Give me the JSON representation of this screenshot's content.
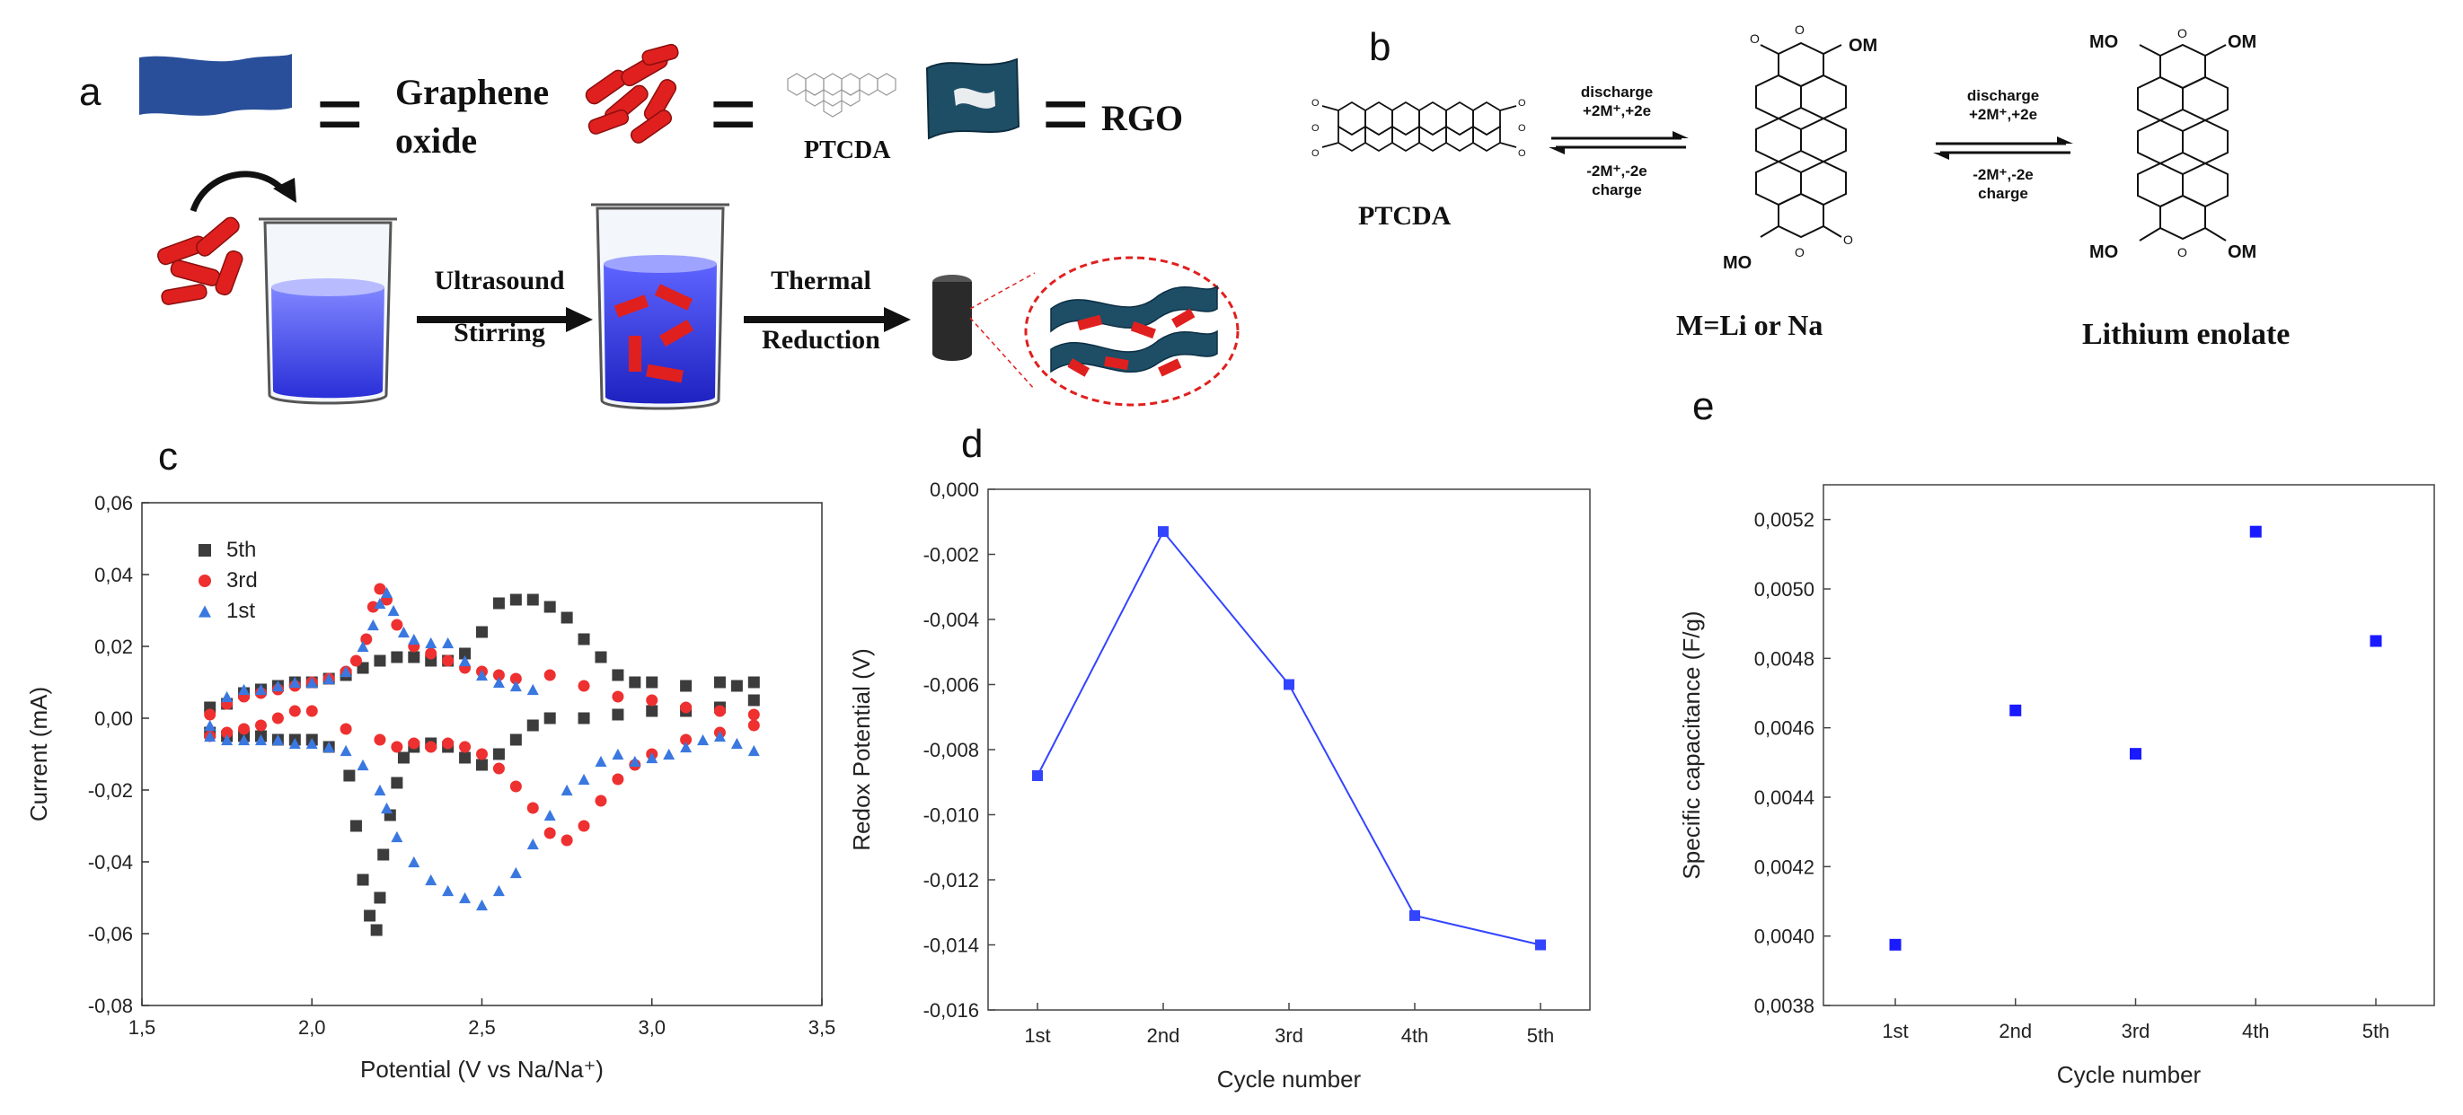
{
  "panels": {
    "a": {
      "letter": "a",
      "legend_go": "Graphene\noxide",
      "legend_go_line1": "Graphene",
      "legend_go_line2": "oxide",
      "ptcda": "PTCDA",
      "rgo": "RGO",
      "eq": "=",
      "step1_line1": "Ultrasound",
      "step1_line2": "Stirring",
      "step2_line1": "Thermal",
      "step2_line2": "Reduction"
    },
    "b": {
      "letter": "b",
      "ptcda": "PTCDA",
      "fwd1_line1": "discharge",
      "fwd1_line2": "+2M⁺,+2e",
      "rev1_line1": "-2M⁺,-2e",
      "rev1_line2": "charge",
      "fwd2_line1": "discharge",
      "fwd2_line2": "+2M⁺,+2e",
      "rev2_line1": "-2M⁺,-2e",
      "rev2_line2": "charge",
      "mid_caption": "M=Li or Na",
      "right_caption": "Lithium enolate",
      "om": "OM",
      "mo": "MO"
    },
    "c": {
      "letter": "c"
    },
    "d": {
      "letter": "d"
    },
    "e": {
      "letter": "e"
    }
  },
  "colors": {
    "red": "#e0201e",
    "navy": "#2a4f9a",
    "teal": "#1e4e66",
    "beaker_blue": "#3b3ff0",
    "series_5th": "#3c3c3c",
    "series_3rd": "#ee3030",
    "series_1st": "#3a78e0",
    "line_d": "#3344ff",
    "marker_e": "#1a1aff"
  },
  "chart_data": [
    {
      "id": "c",
      "type": "scatter",
      "xlabel": "Potential (V vs Na/Na⁺)",
      "ylabel": "Current (mA)",
      "xlim": [
        1.5,
        3.5
      ],
      "ylim": [
        -0.08,
        0.06
      ],
      "xticks": [
        "1,5",
        "2,0",
        "2,5",
        "3,0",
        "3,5"
      ],
      "xtick_values": [
        1.5,
        2.0,
        2.5,
        3.0,
        3.5
      ],
      "yticks": [
        "0,06",
        "0,04",
        "0,02",
        "0,00",
        "-0,02",
        "-0,04",
        "-0,06",
        "-0,08"
      ],
      "ytick_values": [
        0.06,
        0.04,
        0.02,
        0.0,
        -0.02,
        -0.04,
        -0.06,
        -0.08
      ],
      "legend_position": "top-left",
      "series": [
        {
          "name": "5th",
          "marker": "square",
          "points": [
            [
              1.7,
              0.003
            ],
            [
              1.75,
              0.004
            ],
            [
              1.8,
              0.007
            ],
            [
              1.85,
              0.008
            ],
            [
              1.9,
              0.009
            ],
            [
              1.95,
              0.01
            ],
            [
              2.0,
              0.01
            ],
            [
              2.05,
              0.011
            ],
            [
              2.1,
              0.012
            ],
            [
              2.15,
              0.014
            ],
            [
              2.2,
              0.016
            ],
            [
              2.25,
              0.017
            ],
            [
              2.3,
              0.017
            ],
            [
              2.35,
              0.016
            ],
            [
              2.4,
              0.016
            ],
            [
              2.45,
              0.018
            ],
            [
              2.5,
              0.024
            ],
            [
              2.55,
              0.032
            ],
            [
              2.6,
              0.033
            ],
            [
              2.65,
              0.033
            ],
            [
              2.7,
              0.031
            ],
            [
              2.75,
              0.028
            ],
            [
              2.8,
              0.022
            ],
            [
              2.85,
              0.017
            ],
            [
              2.9,
              0.012
            ],
            [
              2.95,
              0.01
            ],
            [
              3.0,
              0.01
            ],
            [
              3.1,
              0.009
            ],
            [
              3.2,
              0.01
            ],
            [
              3.25,
              0.009
            ],
            [
              3.3,
              0.01
            ],
            [
              3.3,
              0.005
            ],
            [
              3.2,
              0.003
            ],
            [
              3.1,
              0.002
            ],
            [
              3.0,
              0.002
            ],
            [
              2.9,
              0.001
            ],
            [
              2.8,
              0.0
            ],
            [
              2.7,
              0.0
            ],
            [
              2.65,
              -0.002
            ],
            [
              2.6,
              -0.006
            ],
            [
              2.55,
              -0.01
            ],
            [
              2.5,
              -0.013
            ],
            [
              2.45,
              -0.011
            ],
            [
              2.4,
              -0.008
            ],
            [
              2.35,
              -0.007
            ],
            [
              2.3,
              -0.008
            ],
            [
              2.27,
              -0.011
            ],
            [
              2.25,
              -0.018
            ],
            [
              2.23,
              -0.027
            ],
            [
              2.21,
              -0.038
            ],
            [
              2.2,
              -0.05
            ],
            [
              2.19,
              -0.059
            ],
            [
              2.17,
              -0.055
            ],
            [
              2.15,
              -0.045
            ],
            [
              2.13,
              -0.03
            ],
            [
              2.11,
              -0.016
            ],
            [
              2.05,
              -0.008
            ],
            [
              2.0,
              -0.006
            ],
            [
              1.95,
              -0.006
            ],
            [
              1.9,
              -0.006
            ],
            [
              1.85,
              -0.005
            ],
            [
              1.8,
              -0.005
            ],
            [
              1.75,
              -0.005
            ],
            [
              1.7,
              -0.004
            ]
          ]
        },
        {
          "name": "3rd",
          "marker": "circle",
          "points": [
            [
              1.7,
              0.001
            ],
            [
              1.75,
              0.004
            ],
            [
              1.8,
              0.006
            ],
            [
              1.85,
              0.007
            ],
            [
              1.9,
              0.008
            ],
            [
              1.95,
              0.009
            ],
            [
              2.0,
              0.01
            ],
            [
              2.05,
              0.011
            ],
            [
              2.1,
              0.013
            ],
            [
              2.13,
              0.016
            ],
            [
              2.16,
              0.022
            ],
            [
              2.18,
              0.031
            ],
            [
              2.2,
              0.036
            ],
            [
              2.22,
              0.033
            ],
            [
              2.25,
              0.026
            ],
            [
              2.3,
              0.02
            ],
            [
              2.35,
              0.018
            ],
            [
              2.4,
              0.016
            ],
            [
              2.45,
              0.014
            ],
            [
              2.5,
              0.013
            ],
            [
              2.55,
              0.012
            ],
            [
              2.6,
              0.011
            ],
            [
              2.7,
              0.012
            ],
            [
              2.8,
              0.009
            ],
            [
              2.9,
              0.006
            ],
            [
              3.0,
              0.005
            ],
            [
              3.1,
              0.003
            ],
            [
              3.2,
              0.002
            ],
            [
              3.3,
              0.001
            ],
            [
              3.3,
              -0.002
            ],
            [
              3.2,
              -0.004
            ],
            [
              3.1,
              -0.006
            ],
            [
              3.0,
              -0.01
            ],
            [
              2.95,
              -0.013
            ],
            [
              2.9,
              -0.017
            ],
            [
              2.85,
              -0.023
            ],
            [
              2.8,
              -0.03
            ],
            [
              2.75,
              -0.034
            ],
            [
              2.7,
              -0.032
            ],
            [
              2.65,
              -0.025
            ],
            [
              2.6,
              -0.019
            ],
            [
              2.55,
              -0.014
            ],
            [
              2.5,
              -0.01
            ],
            [
              2.45,
              -0.008
            ],
            [
              2.4,
              -0.007
            ],
            [
              2.35,
              -0.008
            ],
            [
              2.3,
              -0.007
            ],
            [
              2.25,
              -0.008
            ],
            [
              2.2,
              -0.006
            ],
            [
              2.1,
              -0.003
            ],
            [
              2.0,
              0.002
            ],
            [
              1.95,
              0.002
            ],
            [
              1.9,
              0.0
            ],
            [
              1.85,
              -0.002
            ],
            [
              1.8,
              -0.003
            ],
            [
              1.75,
              -0.004
            ],
            [
              1.7,
              -0.005
            ]
          ]
        },
        {
          "name": "1st",
          "marker": "triangle",
          "points": [
            [
              1.7,
              -0.002
            ],
            [
              1.75,
              0.006
            ],
            [
              1.8,
              0.008
            ],
            [
              1.85,
              0.008
            ],
            [
              1.9,
              0.009
            ],
            [
              1.95,
              0.01
            ],
            [
              2.0,
              0.01
            ],
            [
              2.05,
              0.011
            ],
            [
              2.1,
              0.013
            ],
            [
              2.15,
              0.02
            ],
            [
              2.18,
              0.026
            ],
            [
              2.2,
              0.032
            ],
            [
              2.22,
              0.035
            ],
            [
              2.24,
              0.03
            ],
            [
              2.27,
              0.024
            ],
            [
              2.3,
              0.022
            ],
            [
              2.35,
              0.021
            ],
            [
              2.4,
              0.021
            ],
            [
              2.45,
              0.016
            ],
            [
              2.5,
              0.012
            ],
            [
              2.55,
              0.01
            ],
            [
              2.6,
              0.009
            ],
            [
              2.65,
              0.008
            ],
            [
              3.3,
              -0.009
            ],
            [
              3.25,
              -0.007
            ],
            [
              3.2,
              -0.005
            ],
            [
              3.15,
              -0.006
            ],
            [
              3.1,
              -0.008
            ],
            [
              3.05,
              -0.01
            ],
            [
              3.0,
              -0.011
            ],
            [
              2.95,
              -0.012
            ],
            [
              2.9,
              -0.01
            ],
            [
              2.85,
              -0.012
            ],
            [
              2.8,
              -0.017
            ],
            [
              2.75,
              -0.02
            ],
            [
              2.7,
              -0.027
            ],
            [
              2.65,
              -0.035
            ],
            [
              2.6,
              -0.043
            ],
            [
              2.55,
              -0.048
            ],
            [
              2.5,
              -0.052
            ],
            [
              2.45,
              -0.05
            ],
            [
              2.4,
              -0.048
            ],
            [
              2.35,
              -0.045
            ],
            [
              2.3,
              -0.04
            ],
            [
              2.25,
              -0.033
            ],
            [
              2.22,
              -0.025
            ],
            [
              2.2,
              -0.02
            ],
            [
              2.15,
              -0.013
            ],
            [
              2.1,
              -0.009
            ],
            [
              2.05,
              -0.008
            ],
            [
              2.0,
              -0.007
            ],
            [
              1.95,
              -0.007
            ],
            [
              1.9,
              -0.006
            ],
            [
              1.85,
              -0.006
            ],
            [
              1.8,
              -0.006
            ],
            [
              1.75,
              -0.006
            ],
            [
              1.7,
              -0.005
            ]
          ]
        }
      ]
    },
    {
      "id": "d",
      "type": "line",
      "xlabel": "Cycle number",
      "ylabel": "Redox Potential (V)",
      "categories": [
        "1st",
        "2nd",
        "3rd",
        "4th",
        "5th"
      ],
      "values": [
        -0.0088,
        -0.0013,
        -0.006,
        -0.0131,
        -0.014
      ],
      "ylim": [
        -0.016,
        0.0
      ],
      "yticks": [
        "0,000",
        "-0,002",
        "-0,004",
        "-0,006",
        "-0,008",
        "-0,010",
        "-0,012",
        "-0,014",
        "-0,016"
      ],
      "ytick_values": [
        0.0,
        -0.002,
        -0.004,
        -0.006,
        -0.008,
        -0.01,
        -0.012,
        -0.014,
        -0.016
      ]
    },
    {
      "id": "e",
      "type": "scatter",
      "xlabel": "Cycle number",
      "ylabel": "Specific capacitance (F/g)",
      "categories": [
        "1st",
        "2nd",
        "3rd",
        "4th",
        "5th"
      ],
      "values": [
        0.003975,
        0.00465,
        0.004525,
        0.005165,
        0.00485
      ],
      "ylim": [
        0.0038,
        0.0053
      ],
      "yticks": [
        "0,0052",
        "0,0050",
        "0,0048",
        "0,0046",
        "0,0044",
        "0,0042",
        "0,0040",
        "0,0038"
      ],
      "ytick_values": [
        0.0052,
        0.005,
        0.0048,
        0.0046,
        0.0044,
        0.0042,
        0.004,
        0.0038
      ]
    }
  ]
}
